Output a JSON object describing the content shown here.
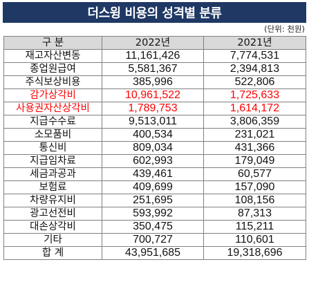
{
  "title": "더스윙 비용의 성격별 분류",
  "unit": "(단위: 천원)",
  "header": {
    "category": "구  분",
    "y2022": "2022년",
    "y2021": "2021년"
  },
  "rows": [
    {
      "label": "재고자산변동",
      "v2022": "11,161,426",
      "v2021": "7,774,531",
      "highlight": false
    },
    {
      "label": "종업원급여",
      "v2022": "5,581,367",
      "v2021": "2,394,813",
      "highlight": false
    },
    {
      "label": "주식보상비용",
      "v2022": "385,996",
      "v2021": "522,806",
      "highlight": false
    },
    {
      "label": "감가상각비",
      "v2022": "10,961,522",
      "v2021": "1,725,633",
      "highlight": true
    },
    {
      "label": "사용권자산상각비",
      "v2022": "1,789,753",
      "v2021": "1,614,172",
      "highlight": true
    },
    {
      "label": "지급수수료",
      "v2022": "9,513,011",
      "v2021": "3,806,359",
      "highlight": false
    },
    {
      "label": "소모품비",
      "v2022": "400,534",
      "v2021": "231,021",
      "highlight": false
    },
    {
      "label": "통신비",
      "v2022": "809,034",
      "v2021": "431,366",
      "highlight": false
    },
    {
      "label": "지급임차료",
      "v2022": "602,993",
      "v2021": "179,049",
      "highlight": false
    },
    {
      "label": "세금과공과",
      "v2022": "439,461",
      "v2021": "60,577",
      "highlight": false
    },
    {
      "label": "보험료",
      "v2022": "409,699",
      "v2021": "157,090",
      "highlight": false
    },
    {
      "label": "차량유지비",
      "v2022": "251,695",
      "v2021": "108,156",
      "highlight": false
    },
    {
      "label": "광고선전비",
      "v2022": "593,992",
      "v2021": "87,313",
      "highlight": false
    },
    {
      "label": "대손상각비",
      "v2022": "350,475",
      "v2021": "115,211",
      "highlight": false
    },
    {
      "label": "기타",
      "v2022": "700,727",
      "v2021": "110,601",
      "highlight": false
    },
    {
      "label": "합  계",
      "v2022": "43,951,685",
      "v2021": "19,318,696",
      "highlight": false
    }
  ],
  "colors": {
    "title_bg": "#1f3864",
    "header_bg": "#d9d9d9",
    "highlight": "#ff0000"
  }
}
